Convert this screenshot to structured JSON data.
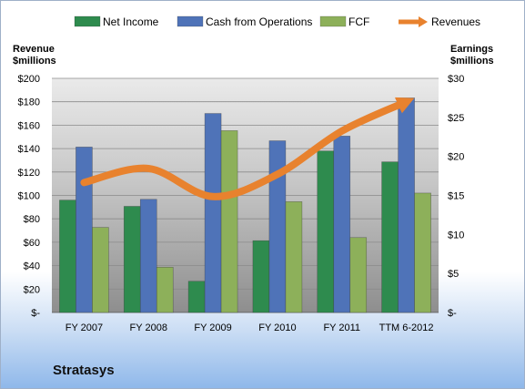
{
  "company": "Stratasys",
  "chart_data": {
    "type": "bar",
    "categories": [
      "FY 2007",
      "FY 2008",
      "FY 2009",
      "FY 2010",
      "FY 2011",
      "TTM 6-2012"
    ],
    "left_axis": {
      "title_line1": "Revenue",
      "title_line2": "$millions",
      "ylim": [
        0,
        200
      ],
      "ticks": [
        "$-",
        "$20",
        "$40",
        "$60",
        "$80",
        "$100",
        "$120",
        "$140",
        "$160",
        "$180",
        "$200"
      ]
    },
    "right_axis": {
      "title_line1": "Earnings",
      "title_line2": "$millions",
      "ylim": [
        0,
        30
      ],
      "ticks": [
        "$-",
        "$5",
        "$10",
        "$15",
        "$20",
        "$25",
        "$30"
      ]
    },
    "series": [
      {
        "name": "Net Income",
        "axis": "right",
        "color": "#2e8b4e",
        "values": [
          14.4,
          13.6,
          4.0,
          9.2,
          20.7,
          19.3
        ]
      },
      {
        "name": "Cash from Operations",
        "axis": "right",
        "color": "#4f73b8",
        "values": [
          21.2,
          14.5,
          25.5,
          22.0,
          22.6,
          27.5
        ]
      },
      {
        "name": "FCF",
        "axis": "right",
        "color": "#8db05a",
        "values": [
          10.9,
          5.8,
          23.3,
          14.2,
          9.6,
          15.3
        ]
      },
      {
        "name": "Revenues",
        "axis": "left",
        "type": "line",
        "color": "#e8822e",
        "values": [
          111,
          123,
          99,
          118,
          155,
          180
        ]
      }
    ],
    "grid": true,
    "legend": "top"
  }
}
